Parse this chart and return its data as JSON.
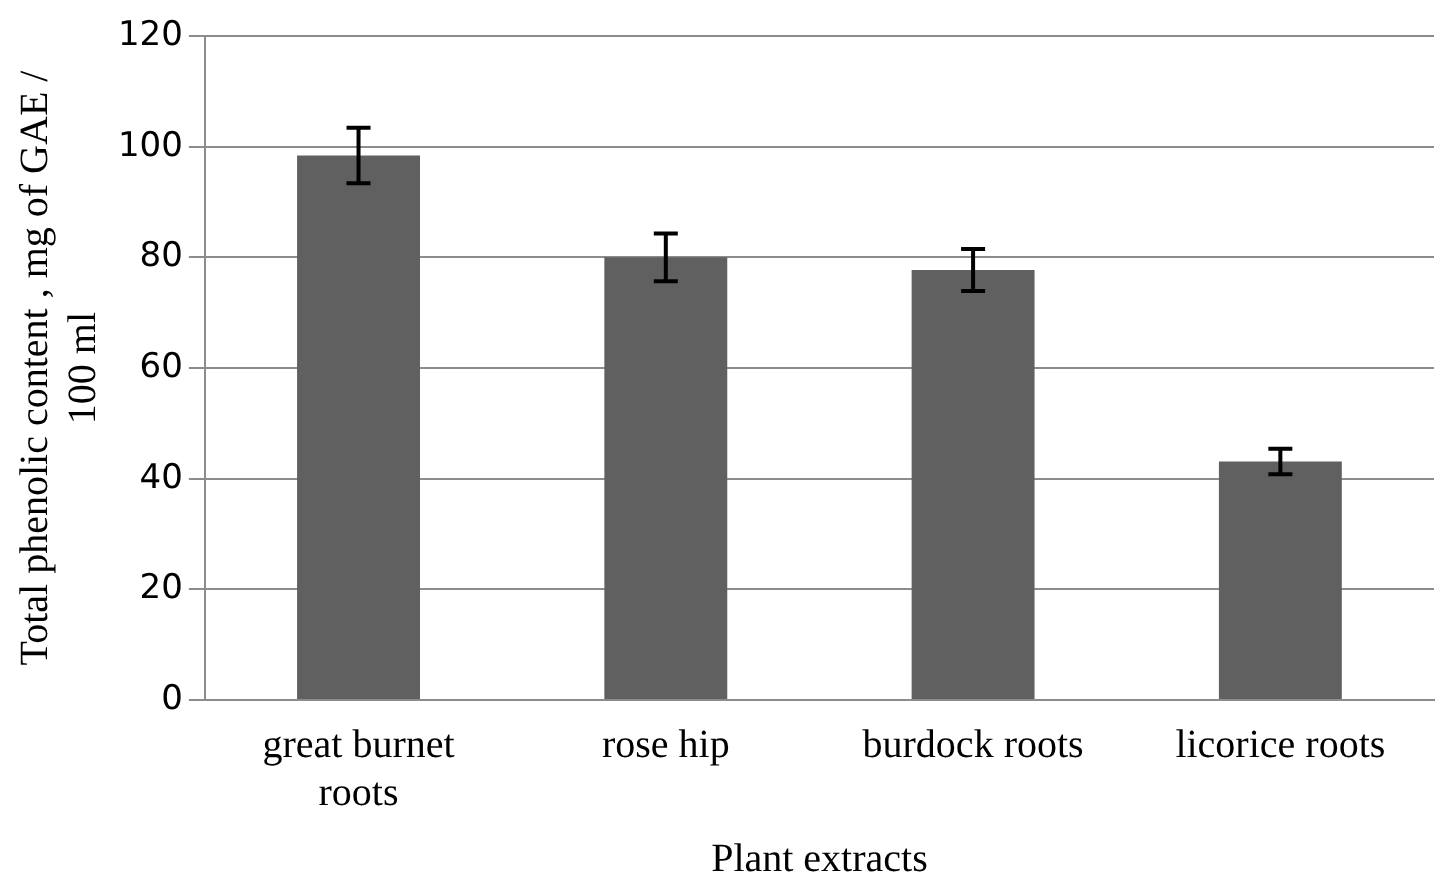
{
  "chart_data": {
    "type": "bar",
    "xlabel": "Plant extracts",
    "ylabel": "Total phenolic content , mg of GAE / 100 ml",
    "categories": [
      "great burnet roots",
      "rose hip",
      "burdock roots",
      "licorice roots"
    ],
    "values": [
      98.4,
      80,
      77.7,
      43.1
    ],
    "errors": [
      5,
      4.3,
      3.8,
      2.3
    ],
    "color": "#606060",
    "ylim": [
      0,
      120
    ],
    "yticks": [
      0,
      20,
      40,
      60,
      80,
      100,
      120
    ],
    "grid": "y",
    "legend": false
  }
}
